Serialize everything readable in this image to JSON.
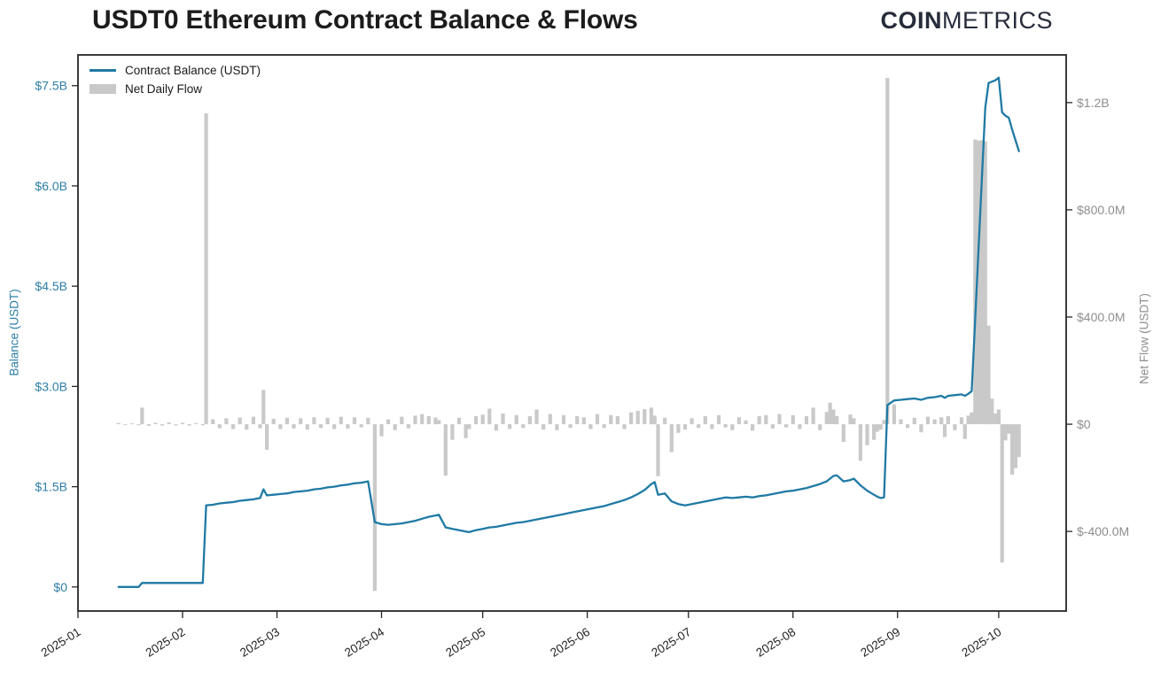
{
  "header": {
    "title": "USDT0 Ethereum Contract Balance & Flows"
  },
  "logo": {
    "bold": "COIN",
    "light": "METRICS"
  },
  "legend": [
    {
      "label": "Contract Balance (USDT)",
      "type": "line",
      "color": "#1f7aa4"
    },
    {
      "label": "Net Daily Flow",
      "type": "bar",
      "color": "#c9c9c9"
    }
  ],
  "chart_data": {
    "type": "mixed",
    "title": "USDT0 Ethereum Contract Balance & Flows",
    "x_type": "date",
    "x_range": [
      "2025-01-01",
      "2025-10-21"
    ],
    "x_ticks": [
      {
        "date": "2025-01-01",
        "label": "2025-01"
      },
      {
        "date": "2025-02-01",
        "label": "2025-02"
      },
      {
        "date": "2025-03-01",
        "label": "2025-03"
      },
      {
        "date": "2025-04-01",
        "label": "2025-04"
      },
      {
        "date": "2025-05-01",
        "label": "2025-05"
      },
      {
        "date": "2025-06-01",
        "label": "2025-06"
      },
      {
        "date": "2025-07-01",
        "label": "2025-07"
      },
      {
        "date": "2025-08-01",
        "label": "2025-08"
      },
      {
        "date": "2025-09-01",
        "label": "2025-09"
      },
      {
        "date": "2025-10-01",
        "label": "2025-10"
      }
    ],
    "left_axis": {
      "title": "Balance (USDT)",
      "color": "#2e7ea6",
      "range_billions": [
        -0.36,
        7.96
      ],
      "ticks": [
        {
          "value": 0.0,
          "label": "$0"
        },
        {
          "value": 1.5,
          "label": "$1.5B"
        },
        {
          "value": 3.0,
          "label": "$3.0B"
        },
        {
          "value": 4.5,
          "label": "$4.5B"
        },
        {
          "value": 6.0,
          "label": "$6.0B"
        },
        {
          "value": 7.5,
          "label": "$7.5B"
        }
      ]
    },
    "right_axis": {
      "title": "Net Flow (USDT)",
      "color": "#8e8e8e",
      "range_millions": [
        -697,
        1378
      ],
      "ticks": [
        {
          "value": -400,
          "label": "$-400.0M"
        },
        {
          "value": 0,
          "label": "$0"
        },
        {
          "value": 400,
          "label": "$400.0M"
        },
        {
          "value": 800,
          "label": "$800.0M"
        },
        {
          "value": 1200,
          "label": "$1.2B"
        }
      ]
    },
    "series": [
      {
        "name": "Contract Balance (USDT)",
        "type": "line",
        "axis": "left",
        "color": "#1f7aa4",
        "unit": "USD billions",
        "values_key": "balance_billions"
      },
      {
        "name": "Net Daily Flow",
        "type": "bar",
        "axis": "right",
        "color": "#c9c9c9",
        "unit": "USD millions",
        "values_key": "net_flow_millions"
      }
    ],
    "dates": [
      "2025-01-13",
      "2025-01-15",
      "2025-01-17",
      "2025-01-19",
      "2025-01-20",
      "2025-01-22",
      "2025-01-24",
      "2025-01-26",
      "2025-01-28",
      "2025-01-30",
      "2025-02-01",
      "2025-02-03",
      "2025-02-05",
      "2025-02-07",
      "2025-02-08",
      "2025-02-10",
      "2025-02-12",
      "2025-02-14",
      "2025-02-16",
      "2025-02-18",
      "2025-02-20",
      "2025-02-22",
      "2025-02-24",
      "2025-02-25",
      "2025-02-26",
      "2025-02-28",
      "2025-03-02",
      "2025-03-04",
      "2025-03-06",
      "2025-03-08",
      "2025-03-10",
      "2025-03-12",
      "2025-03-14",
      "2025-03-16",
      "2025-03-18",
      "2025-03-20",
      "2025-03-22",
      "2025-03-24",
      "2025-03-26",
      "2025-03-28",
      "2025-03-30",
      "2025-04-01",
      "2025-04-03",
      "2025-04-05",
      "2025-04-07",
      "2025-04-09",
      "2025-04-11",
      "2025-04-13",
      "2025-04-15",
      "2025-04-17",
      "2025-04-18",
      "2025-04-20",
      "2025-04-22",
      "2025-04-24",
      "2025-04-26",
      "2025-04-27",
      "2025-04-29",
      "2025-05-01",
      "2025-05-03",
      "2025-05-05",
      "2025-05-07",
      "2025-05-09",
      "2025-05-11",
      "2025-05-13",
      "2025-05-15",
      "2025-05-17",
      "2025-05-19",
      "2025-05-21",
      "2025-05-23",
      "2025-05-25",
      "2025-05-27",
      "2025-05-29",
      "2025-05-31",
      "2025-06-02",
      "2025-06-04",
      "2025-06-06",
      "2025-06-08",
      "2025-06-10",
      "2025-06-12",
      "2025-06-14",
      "2025-06-16",
      "2025-06-18",
      "2025-06-20",
      "2025-06-21",
      "2025-06-22",
      "2025-06-24",
      "2025-06-26",
      "2025-06-28",
      "2025-06-30",
      "2025-07-02",
      "2025-07-04",
      "2025-07-06",
      "2025-07-08",
      "2025-07-10",
      "2025-07-12",
      "2025-07-14",
      "2025-07-16",
      "2025-07-18",
      "2025-07-20",
      "2025-07-22",
      "2025-07-24",
      "2025-07-26",
      "2025-07-28",
      "2025-07-30",
      "2025-08-01",
      "2025-08-03",
      "2025-08-05",
      "2025-08-07",
      "2025-08-09",
      "2025-08-11",
      "2025-08-12",
      "2025-08-13",
      "2025-08-14",
      "2025-08-16",
      "2025-08-18",
      "2025-08-19",
      "2025-08-21",
      "2025-08-23",
      "2025-08-25",
      "2025-08-26",
      "2025-08-27",
      "2025-08-28",
      "2025-08-29",
      "2025-08-31",
      "2025-09-02",
      "2025-09-04",
      "2025-09-06",
      "2025-09-08",
      "2025-09-10",
      "2025-09-12",
      "2025-09-14",
      "2025-09-15",
      "2025-09-16",
      "2025-09-18",
      "2025-09-20",
      "2025-09-21",
      "2025-09-22",
      "2025-09-23",
      "2025-09-24",
      "2025-09-25",
      "2025-09-26",
      "2025-09-27",
      "2025-09-28",
      "2025-09-29",
      "2025-09-30",
      "2025-10-01",
      "2025-10-02",
      "2025-10-03",
      "2025-10-04",
      "2025-10-05",
      "2025-10-06",
      "2025-10-07"
    ],
    "balance_billions": [
      0.0,
      0.0,
      0.0,
      0.0,
      0.06,
      0.06,
      0.06,
      0.06,
      0.06,
      0.06,
      0.06,
      0.06,
      0.06,
      0.06,
      1.22,
      1.23,
      1.25,
      1.26,
      1.27,
      1.29,
      1.3,
      1.31,
      1.33,
      1.46,
      1.37,
      1.38,
      1.39,
      1.4,
      1.42,
      1.43,
      1.44,
      1.46,
      1.47,
      1.49,
      1.5,
      1.52,
      1.53,
      1.55,
      1.56,
      1.58,
      0.97,
      0.94,
      0.93,
      0.94,
      0.95,
      0.97,
      0.99,
      1.02,
      1.05,
      1.07,
      1.08,
      0.89,
      0.87,
      0.85,
      0.83,
      0.82,
      0.85,
      0.87,
      0.89,
      0.9,
      0.92,
      0.94,
      0.96,
      0.97,
      0.99,
      1.01,
      1.03,
      1.05,
      1.07,
      1.09,
      1.11,
      1.13,
      1.15,
      1.17,
      1.19,
      1.21,
      1.24,
      1.27,
      1.3,
      1.34,
      1.39,
      1.45,
      1.54,
      1.57,
      1.38,
      1.4,
      1.28,
      1.24,
      1.22,
      1.24,
      1.26,
      1.28,
      1.3,
      1.32,
      1.34,
      1.33,
      1.34,
      1.35,
      1.34,
      1.36,
      1.37,
      1.39,
      1.41,
      1.43,
      1.44,
      1.46,
      1.48,
      1.51,
      1.54,
      1.58,
      1.62,
      1.66,
      1.67,
      1.58,
      1.6,
      1.62,
      1.52,
      1.44,
      1.38,
      1.35,
      1.33,
      1.34,
      2.72,
      2.79,
      2.8,
      2.81,
      2.82,
      2.8,
      2.83,
      2.84,
      2.86,
      2.83,
      2.86,
      2.87,
      2.88,
      2.86,
      2.89,
      2.93,
      3.99,
      5.05,
      6.11,
      7.17,
      7.54,
      7.56,
      7.58,
      7.62,
      7.1,
      7.05,
      7.02,
      6.84,
      6.68,
      6.52
    ],
    "net_flow_millions": [
      4,
      -3,
      3,
      -3,
      62,
      -6,
      5,
      -5,
      6,
      -4,
      5,
      -5,
      4,
      -4,
      1160,
      18,
      -15,
      22,
      -18,
      25,
      -20,
      28,
      -15,
      128,
      -95,
      20,
      -18,
      24,
      -16,
      22,
      -20,
      26,
      -14,
      24,
      -18,
      28,
      -16,
      26,
      -12,
      24,
      -622,
      -45,
      18,
      -22,
      28,
      -15,
      32,
      38,
      30,
      25,
      15,
      -192,
      -58,
      24,
      -52,
      -18,
      30,
      36,
      58,
      -24,
      40,
      -18,
      34,
      -14,
      30,
      55,
      -20,
      38,
      -22,
      34,
      -14,
      30,
      26,
      -18,
      38,
      -14,
      34,
      30,
      -18,
      44,
      50,
      56,
      62,
      32,
      -194,
      24,
      -104,
      -32,
      -20,
      22,
      -14,
      30,
      -18,
      34,
      -12,
      -22,
      26,
      14,
      -24,
      30,
      34,
      -16,
      38,
      -12,
      34,
      -18,
      30,
      62,
      -22,
      46,
      80,
      55,
      30,
      -66,
      36,
      22,
      -136,
      -78,
      -58,
      -28,
      -20,
      16,
      1292,
      74,
      18,
      -14,
      24,
      -30,
      28,
      18,
      26,
      -48,
      30,
      -22,
      26,
      -55,
      32,
      44,
      1062,
      1058,
      1060,
      1056,
      368,
      95,
      40,
      55,
      -516,
      -60,
      -35,
      -188,
      -164,
      -122
    ]
  }
}
